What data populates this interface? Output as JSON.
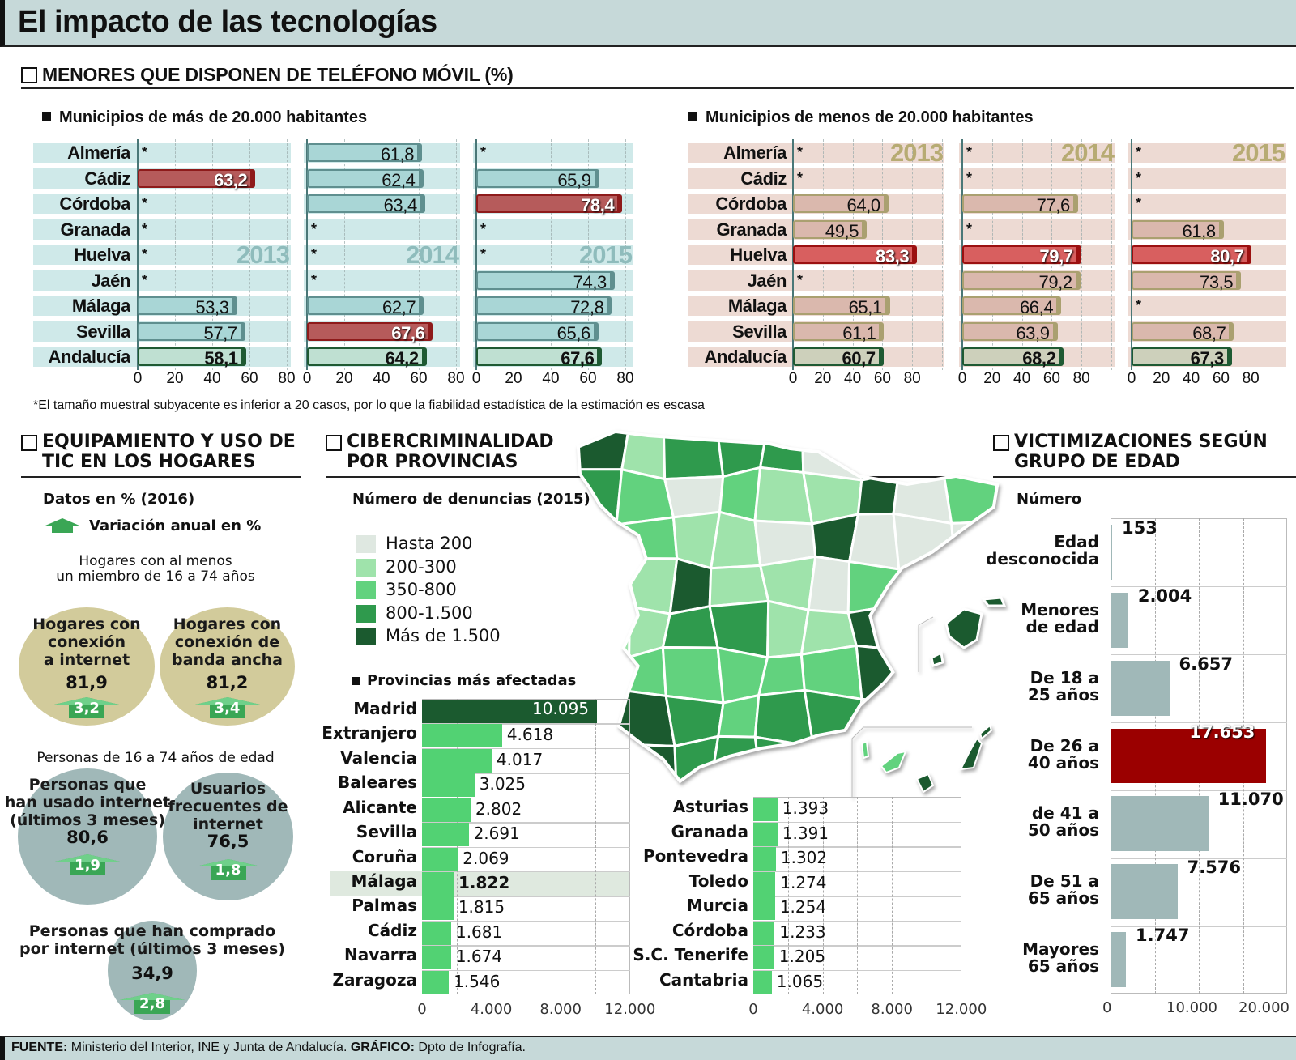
{
  "title": "El impacto de las tecnologías",
  "mobile": {
    "heading": "MENORES QUE DISPONEN DE TELÉFONO MÓVIL (%)",
    "footnote": "*El tamaño muestral subyacente es inferior a 20 casos, por lo que la fiabilidad estadística de la estimación es escasa"
  },
  "tic": {
    "heading_1": "EQUIPAMIENTO Y USO DE",
    "heading_2": "TIC EN LOS HOGARES",
    "data_label": "Datos en % (2016)",
    "variation_label": "Variación anual en %",
    "group1_title_1": "Hogares con al menos",
    "group1_title_2": "un miembro de 16 a 74 años",
    "group2_title": "Personas de 16 a 74 años de edad",
    "items": [
      {
        "lines": [
          "Hogares con",
          "conexión",
          "a internet"
        ],
        "value": "81,9",
        "change": "3,2"
      },
      {
        "lines": [
          "Hogares con",
          "conexión de",
          "banda ancha"
        ],
        "value": "81,2",
        "change": "3,4"
      },
      {
        "lines": [
          "Personas que",
          "han usado internet",
          "(últimos 3 meses)"
        ],
        "value": "80,6",
        "change": "1,9"
      },
      {
        "lines": [
          "Usuarios",
          "frecuentes de",
          "internet"
        ],
        "value": "76,5",
        "change": "1,8"
      },
      {
        "lines": [
          "Personas que han comprado",
          "por internet (últimos 3 meses)"
        ],
        "value": "34,9",
        "change": "2,8"
      }
    ],
    "colors": {
      "households": "#d2cb9b",
      "persons": "#a0b8b8",
      "arrow": "#3aa655"
    }
  },
  "ciber": {
    "heading_1": "CIBERCRIMINALIDAD",
    "heading_2": "POR PROVINCIAS",
    "subtitle": "Número de denuncias (2015)",
    "legend": [
      {
        "label": "Hasta 200",
        "color": "#dfe8e1"
      },
      {
        "label": "200-300",
        "color": "#9fe3ab"
      },
      {
        "label": "350-800",
        "color": "#62d27e"
      },
      {
        "label": "800-1.500",
        "color": "#2f9a4d"
      },
      {
        "label": "Más de 1.500",
        "color": "#1b5a2f"
      }
    ]
  },
  "victims": {
    "heading_1": "VICTIMIZACIONES SEGÚN",
    "heading_2": "GRUPO DE EDAD",
    "subtitle": "Número"
  },
  "footer": {
    "source_label": "FUENTE:",
    "source_text": " Ministerio del Interior, INE y Junta de Andalucía. ",
    "credit_label": "GRÁFICO:",
    "credit_text": " Dpto de Infografía."
  },
  "chart_data": [
    {
      "type": "bar",
      "title": "Municipios de más de 20.000 habitantes",
      "categories": [
        "Almería",
        "Cádiz",
        "Córdoba",
        "Granada",
        "Huelva",
        "Jaén",
        "Málaga",
        "Sevilla",
        "Andalucía"
      ],
      "series": [
        {
          "name": "2013",
          "values": [
            null,
            63.2,
            null,
            null,
            null,
            null,
            53.3,
            57.7,
            58.1
          ]
        },
        {
          "name": "2014",
          "values": [
            61.8,
            62.4,
            63.4,
            null,
            null,
            null,
            62.7,
            67.6,
            64.2
          ]
        },
        {
          "name": "2015",
          "values": [
            null,
            65.9,
            78.4,
            null,
            null,
            74.3,
            72.8,
            65.6,
            67.6
          ]
        }
      ],
      "missing_marker": "*",
      "xticks": [
        "0",
        "20",
        "40",
        "60",
        "80"
      ],
      "xlim": [
        0,
        80
      ],
      "grid": true
    },
    {
      "type": "bar",
      "title": "Municipios de menos de 20.000 habitantes",
      "categories": [
        "Almería",
        "Cádiz",
        "Córdoba",
        "Granada",
        "Huelva",
        "Jaén",
        "Málaga",
        "Sevilla",
        "Andalucía"
      ],
      "series": [
        {
          "name": "2013",
          "values": [
            null,
            null,
            64.0,
            49.5,
            83.3,
            null,
            65.1,
            61.1,
            60.7
          ]
        },
        {
          "name": "2014",
          "values": [
            null,
            null,
            77.6,
            null,
            79.7,
            79.2,
            66.4,
            63.9,
            68.2
          ]
        },
        {
          "name": "2015",
          "values": [
            null,
            null,
            null,
            61.8,
            80.7,
            73.5,
            null,
            68.7,
            67.3
          ]
        }
      ],
      "missing_marker": "*",
      "xticks": [
        "0",
        "20",
        "40",
        "60",
        "80"
      ],
      "xlim": [
        0,
        100
      ],
      "grid": true
    },
    {
      "type": "bar",
      "title": "Provincias más afectadas",
      "categories": [
        "Madrid",
        "Extranjero",
        "Valencia",
        "Baleares",
        "Alicante",
        "Sevilla",
        "Coruña",
        "Málaga",
        "Palmas",
        "Cádiz",
        "Navarra",
        "Zaragoza"
      ],
      "values": [
        10095,
        4618,
        4017,
        3025,
        2802,
        2691,
        2069,
        1822,
        1815,
        1681,
        1674,
        1546
      ],
      "highlight": "Málaga",
      "xticks": [
        "0",
        "4.000",
        "8.000",
        "12.000"
      ],
      "xlim": [
        0,
        12000
      ],
      "grid": true
    },
    {
      "type": "bar",
      "categories": [
        "Asturias",
        "Granada",
        "Pontevedra",
        "Toledo",
        "Murcia",
        "Córdoba",
        "S.C. Tenerife",
        "Cantabria"
      ],
      "values": [
        1393,
        1391,
        1302,
        1274,
        1254,
        1233,
        1205,
        1065
      ],
      "xticks": [
        "0",
        "4.000",
        "8.000",
        "12.000"
      ],
      "xlim": [
        0,
        12000
      ],
      "grid": true
    },
    {
      "type": "bar",
      "categories": [
        "Edad desconocida",
        "Menores de edad",
        "De 18 a 25 años",
        "De 26 a 40 años",
        "de 41 a 50 años",
        "De 51 a 65 años",
        "Mayores 65 años"
      ],
      "category_lines": [
        [
          "Edad",
          "desconocida"
        ],
        [
          "Menores",
          "de edad"
        ],
        [
          "De 18 a",
          "25 años"
        ],
        [
          "De 26 a",
          "40 años"
        ],
        [
          "de 41 a",
          "50 años"
        ],
        [
          "De 51 a",
          "65 años"
        ],
        [
          "Mayores",
          "65 años"
        ]
      ],
      "values": [
        153,
        2004,
        6657,
        17653,
        11070,
        7576,
        1747
      ],
      "xticks": [
        "0",
        "10.000",
        "20.000"
      ],
      "xlim": [
        0,
        20000
      ],
      "grid": true,
      "colors": {
        "default": "#a0b8b8",
        "max": "#9b0000"
      }
    }
  ]
}
